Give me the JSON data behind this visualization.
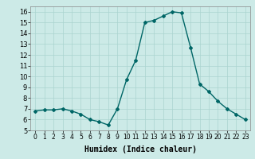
{
  "x": [
    0,
    1,
    2,
    3,
    4,
    5,
    6,
    7,
    8,
    9,
    10,
    11,
    12,
    13,
    14,
    15,
    16,
    17,
    18,
    19,
    20,
    21,
    22,
    23
  ],
  "y": [
    6.8,
    6.9,
    6.9,
    7.0,
    6.8,
    6.5,
    6.0,
    5.8,
    5.5,
    7.0,
    9.7,
    11.5,
    15.0,
    15.2,
    15.6,
    16.0,
    15.9,
    12.7,
    9.3,
    8.6,
    7.7,
    7.0,
    6.5,
    6.0
  ],
  "color": "#006666",
  "marker": "D",
  "markersize": 2,
  "linewidth": 1.0,
  "xlabel": "Humidex (Indice chaleur)",
  "xlim": [
    -0.5,
    23.5
  ],
  "ylim": [
    5,
    16.5
  ],
  "yticks": [
    5,
    6,
    7,
    8,
    9,
    10,
    11,
    12,
    13,
    14,
    15,
    16
  ],
  "xticks": [
    0,
    1,
    2,
    3,
    4,
    5,
    6,
    7,
    8,
    9,
    10,
    11,
    12,
    13,
    14,
    15,
    16,
    17,
    18,
    19,
    20,
    21,
    22,
    23
  ],
  "background_color": "#cceae7",
  "grid_color": "#aad4d0",
  "tick_fontsize": 6,
  "label_fontsize": 7
}
